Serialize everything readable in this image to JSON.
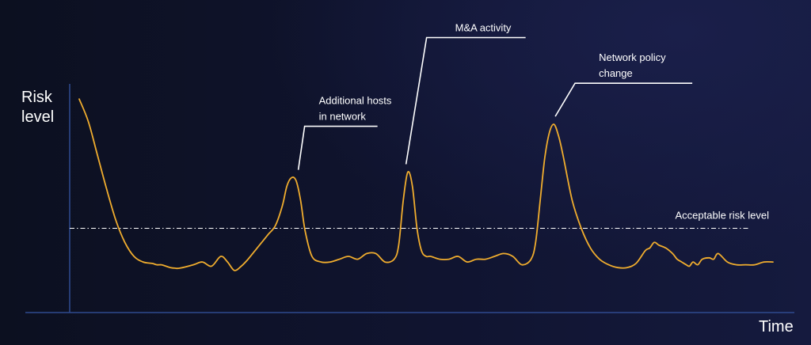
{
  "chart_data": {
    "type": "line",
    "ylabel_lines": [
      "Risk",
      "level"
    ],
    "xlabel": "Time",
    "threshold": {
      "label": "Acceptable risk level",
      "y": 0.3
    },
    "colors": {
      "line": "#f0ad2e",
      "axis": "#2f4a8f",
      "text": "#ffffff",
      "threshold": "#ffffff"
    },
    "series": [
      {
        "x": [
          0,
          2,
          4,
          6,
          8,
          10,
          12,
          14,
          16,
          17,
          18,
          19,
          20,
          21,
          22,
          25,
          27,
          29,
          31,
          32.5,
          34,
          35.5,
          37,
          38.5,
          40,
          41.5,
          43,
          44.5,
          45.5,
          46.5,
          47.5,
          48.5,
          49.5,
          51,
          53,
          55,
          57,
          59,
          61,
          63,
          65,
          67,
          69,
          70,
          71,
          72,
          73,
          74,
          75,
          76,
          77,
          79,
          81,
          83,
          85,
          87,
          89,
          91,
          93,
          95,
          97,
          99,
          100,
          101,
          102,
          103,
          104,
          105,
          106,
          108,
          110,
          112,
          114,
          116,
          118,
          120,
          122,
          124,
          125,
          126,
          127,
          128.5,
          130,
          131,
          132,
          133,
          133.7,
          134.5,
          135.5,
          136.5,
          138,
          139,
          140,
          142,
          144,
          146,
          148,
          150,
          152
        ],
        "y": [
          0.76,
          0.68,
          0.56,
          0.44,
          0.33,
          0.25,
          0.2,
          0.18,
          0.175,
          0.17,
          0.17,
          0.165,
          0.16,
          0.158,
          0.158,
          0.17,
          0.18,
          0.165,
          0.2,
          0.18,
          0.15,
          0.165,
          0.19,
          0.22,
          0.25,
          0.28,
          0.31,
          0.38,
          0.45,
          0.48,
          0.47,
          0.4,
          0.29,
          0.2,
          0.18,
          0.18,
          0.19,
          0.2,
          0.19,
          0.21,
          0.21,
          0.18,
          0.19,
          0.24,
          0.4,
          0.5,
          0.45,
          0.3,
          0.22,
          0.2,
          0.2,
          0.19,
          0.19,
          0.2,
          0.18,
          0.19,
          0.19,
          0.2,
          0.21,
          0.2,
          0.17,
          0.19,
          0.25,
          0.4,
          0.55,
          0.64,
          0.67,
          0.63,
          0.56,
          0.4,
          0.3,
          0.23,
          0.19,
          0.17,
          0.16,
          0.16,
          0.175,
          0.22,
          0.23,
          0.25,
          0.24,
          0.23,
          0.21,
          0.19,
          0.18,
          0.17,
          0.165,
          0.18,
          0.17,
          0.19,
          0.195,
          0.19,
          0.21,
          0.18,
          0.17,
          0.17,
          0.17,
          0.18,
          0.18
        ]
      }
    ],
    "annotations": [
      {
        "lines": [
          "Additional hosts",
          "in network"
        ],
        "x": 48,
        "y": 0.48
      },
      {
        "lines": [
          "M&A activity"
        ],
        "x": 71.6,
        "y": 0.5
      },
      {
        "lines": [
          "Network policy",
          "change"
        ],
        "x": 104.3,
        "y": 0.67
      }
    ]
  }
}
